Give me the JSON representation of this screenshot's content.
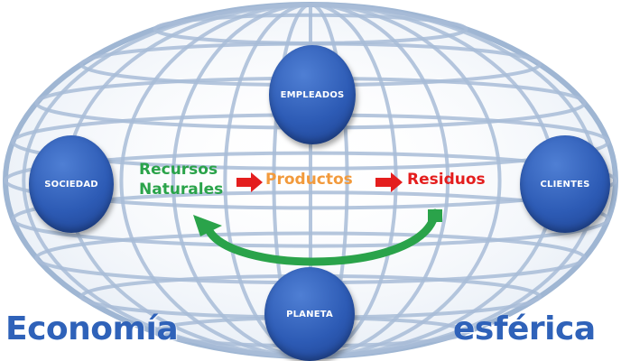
{
  "nodes": {
    "empleados": "EMPLEADOS",
    "sociedad": "SOCIEDAD",
    "clientes": "CLIENTES",
    "planeta": "PLANETA"
  },
  "flow": {
    "recursos_line1": "Recursos",
    "recursos_line2": "Naturales",
    "productos": "Productos",
    "residuos": "Residuos"
  },
  "title": {
    "word1": "Economía",
    "word2": "esférica"
  },
  "colors": {
    "node_blue": "#2d5bb5",
    "recursos_green": "#2aa34a",
    "productos_orange": "#f29a3c",
    "residuos_red": "#e41e1e",
    "title_blue": "#2f62b9",
    "globe_grid": "#9fb6d3"
  }
}
